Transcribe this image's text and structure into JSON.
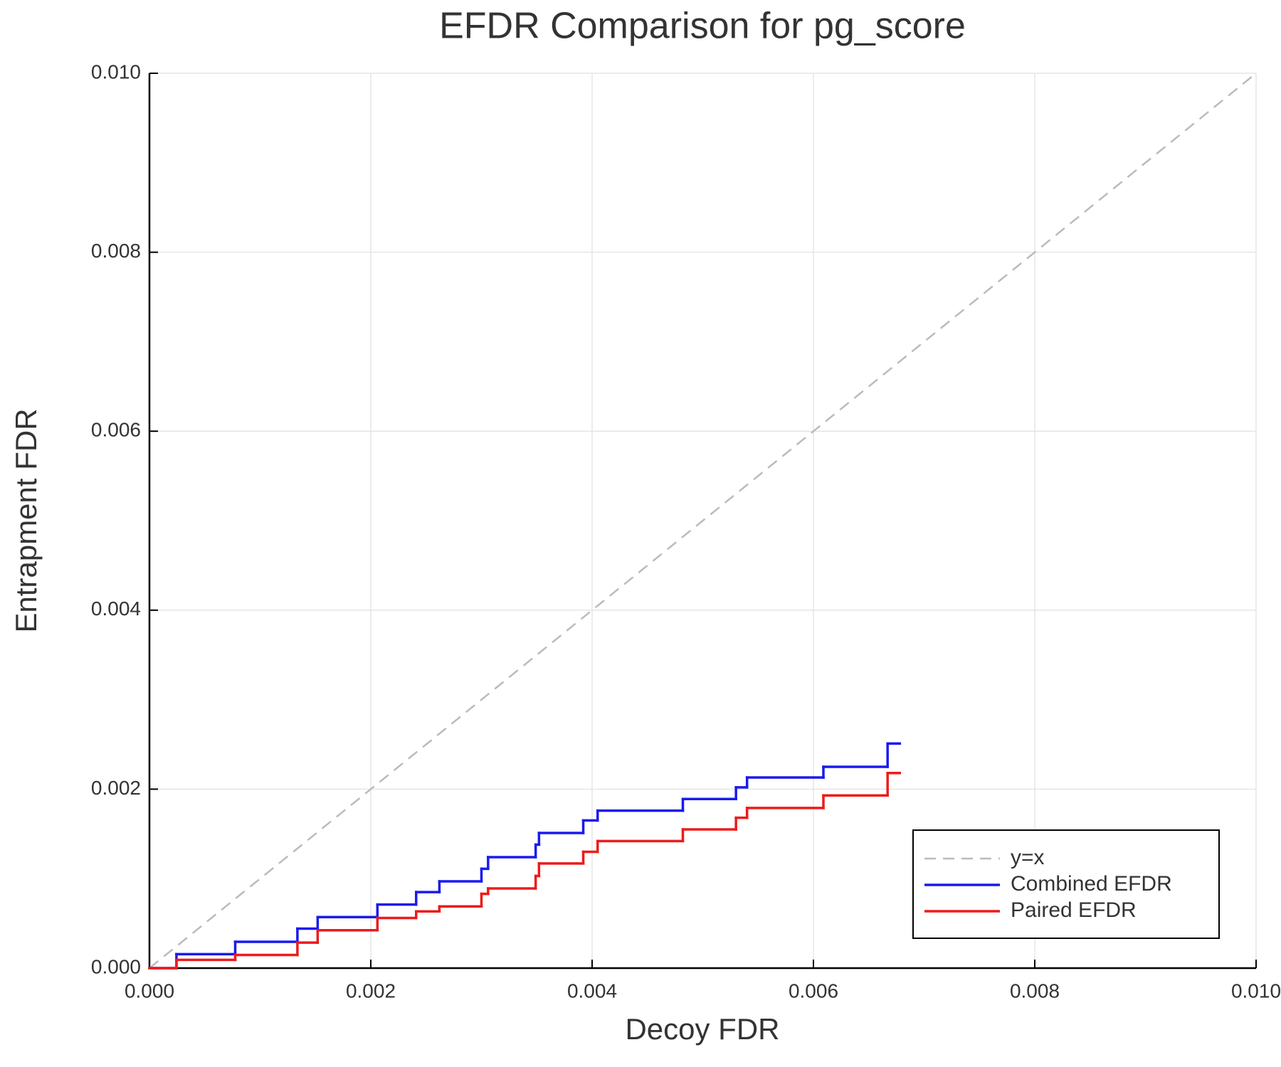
{
  "chart_data": {
    "type": "step",
    "title": "EFDR Comparison for pg_score",
    "x_label": "Decoy FDR",
    "y_label": "Entrapment FDR",
    "xlim": [
      0,
      0.01
    ],
    "ylim": [
      0,
      0.01
    ],
    "xticks": [
      {
        "value": 0,
        "label": "0.000"
      },
      0.002,
      0.004,
      0.006,
      0.008,
      {
        "value": 0.01,
        "label": "0.010"
      }
    ],
    "yticks": [
      {
        "value": 0,
        "label": "0.000"
      },
      0.002,
      0.004,
      0.006,
      0.008,
      {
        "value": 0.01,
        "label": "0.010"
      }
    ],
    "grid": true,
    "legend": "lower right",
    "series": [
      {
        "name": "y=x",
        "color": "#bbbbbb",
        "style": "dashed",
        "x": [
          0,
          0.01
        ],
        "values": [
          0,
          0.01
        ]
      },
      {
        "name": "Combined EFDR",
        "color": "#1a1aee",
        "style": "step",
        "x": [
          0,
          0.000244,
          0.000775,
          0.001337,
          0.00152,
          0.00206,
          0.00241,
          0.00262,
          0.003,
          0.00306,
          0.00349,
          0.00352,
          0.00392,
          0.00405,
          0.00482,
          0.0053,
          0.0054,
          0.00609,
          0.00667,
          0.00678
        ],
        "values": [
          0,
          0.000156,
          0.000294,
          0.000441,
          0.00057,
          0.00071,
          0.00085,
          0.00097,
          0.00111,
          0.00124,
          0.00138,
          0.00151,
          0.00165,
          0.00176,
          0.00189,
          0.00202,
          0.00213,
          0.00225,
          0.00251,
          0.00251
        ]
      },
      {
        "name": "Paired EFDR",
        "color": "#ee1a1a",
        "style": "step",
        "x": [
          0,
          0.000244,
          0.000775,
          0.001337,
          0.00152,
          0.00206,
          0.00241,
          0.00262,
          0.003,
          0.00306,
          0.00349,
          0.00352,
          0.00392,
          0.00405,
          0.00482,
          0.0053,
          0.0054,
          0.00609,
          0.00667,
          0.00678
        ],
        "values": [
          0,
          9.2e-05,
          0.000147,
          0.000285,
          0.000423,
          0.00056,
          0.000634,
          0.00069,
          0.00083,
          0.00089,
          0.00103,
          0.00117,
          0.0013,
          0.00142,
          0.00155,
          0.00168,
          0.00179,
          0.00193,
          0.00218,
          0.00218
        ]
      }
    ]
  }
}
